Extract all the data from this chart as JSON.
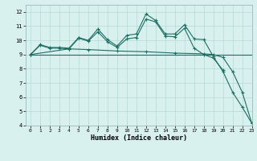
{
  "title": "",
  "xlabel": "Humidex (Indice chaleur)",
  "ylabel": "",
  "bg_color": "#d8f0ee",
  "grid_color": "#b8d8d4",
  "line_color": "#1e6e62",
  "xlim": [
    -0.5,
    23
  ],
  "ylim": [
    4,
    12.5
  ],
  "yticks": [
    4,
    5,
    6,
    7,
    8,
    9,
    10,
    11,
    12
  ],
  "xticks": [
    0,
    1,
    2,
    3,
    4,
    5,
    6,
    7,
    8,
    9,
    10,
    11,
    12,
    13,
    14,
    15,
    16,
    17,
    18,
    19,
    20,
    21,
    22,
    23
  ],
  "line1_x": [
    0,
    1,
    2,
    3,
    4,
    5,
    6,
    7,
    8,
    9,
    10,
    11,
    12,
    13,
    14,
    15,
    16,
    17,
    18,
    19,
    20,
    21,
    22,
    23
  ],
  "line1_y": [
    9.0,
    9.7,
    9.5,
    9.5,
    9.45,
    10.2,
    10.0,
    10.8,
    10.05,
    9.6,
    10.35,
    10.45,
    11.85,
    11.4,
    10.45,
    10.45,
    11.1,
    10.1,
    10.05,
    8.85,
    7.8,
    6.35,
    5.3,
    4.15
  ],
  "line2_x": [
    0,
    1,
    2,
    3,
    4,
    5,
    6,
    7,
    8,
    9,
    10,
    11,
    12,
    13,
    14,
    15,
    16,
    17,
    18,
    19,
    20
  ],
  "line2_y": [
    9.0,
    9.65,
    9.45,
    9.45,
    9.4,
    10.15,
    9.95,
    10.6,
    9.9,
    9.5,
    10.1,
    10.2,
    11.5,
    11.3,
    10.3,
    10.25,
    10.85,
    9.45,
    9.0,
    8.75,
    7.9
  ],
  "line3_x": [
    0,
    23
  ],
  "line3_y": [
    9.0,
    9.0
  ],
  "line4_x": [
    0,
    4,
    6,
    9,
    12,
    15,
    18,
    19,
    20,
    21,
    22,
    23
  ],
  "line4_y": [
    9.0,
    9.4,
    9.35,
    9.25,
    9.2,
    9.1,
    9.05,
    9.0,
    8.8,
    7.8,
    6.35,
    4.15
  ]
}
